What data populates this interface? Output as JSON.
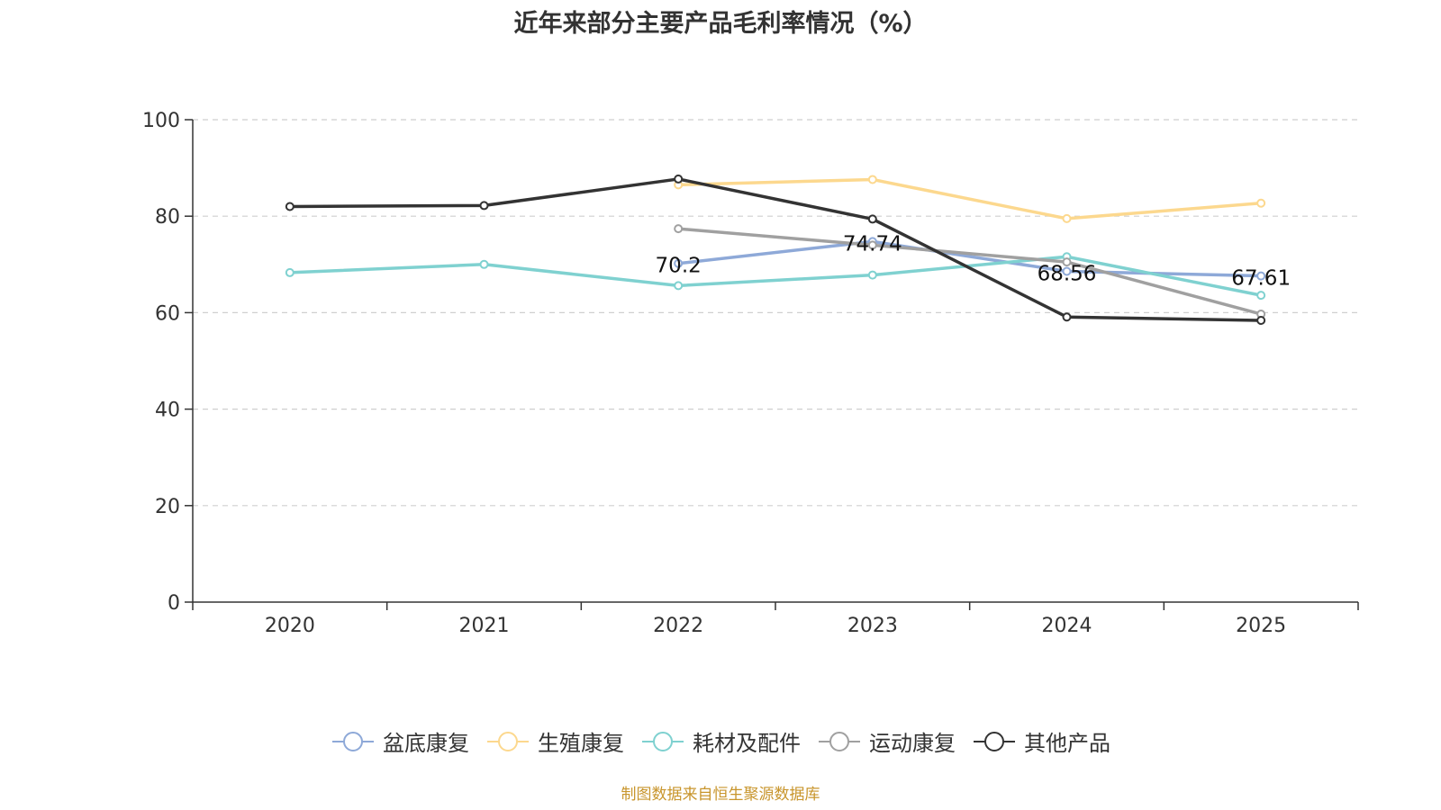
{
  "chart_data": {
    "type": "line",
    "title": "近年来部分主要产品毛利率情况（%）",
    "categories": [
      "2020",
      "2021",
      "2022",
      "2023",
      "2024",
      "2025"
    ],
    "ylim": [
      0,
      100
    ],
    "yticks": [
      0,
      20,
      40,
      60,
      80,
      100
    ],
    "grid": true,
    "legend_position": "bottom",
    "series": [
      {
        "name": "盆底康复",
        "color": "#8ea9d8",
        "values": [
          null,
          null,
          70.2,
          74.74,
          68.56,
          67.61
        ],
        "labels": [
          "",
          "",
          "70.2",
          "74.74",
          "68.56",
          "67.61"
        ]
      },
      {
        "name": "生殖康复",
        "color": "#fcd88e",
        "values": [
          null,
          null,
          86.5,
          87.6,
          79.5,
          82.7
        ],
        "labels": [
          "",
          "",
          "",
          "",
          "",
          ""
        ]
      },
      {
        "name": "耗材及配件",
        "color": "#7fd1d0",
        "values": [
          68.3,
          70.0,
          65.6,
          67.8,
          71.6,
          63.6
        ],
        "labels": [
          "",
          "",
          "",
          "",
          "",
          ""
        ]
      },
      {
        "name": "运动康复",
        "color": "#a0a0a0",
        "values": [
          null,
          null,
          77.4,
          74.0,
          70.5,
          59.7
        ],
        "labels": [
          "",
          "",
          "",
          "",
          "",
          ""
        ]
      },
      {
        "name": "其他产品",
        "color": "#333333",
        "values": [
          82.0,
          82.2,
          87.7,
          79.4,
          59.1,
          58.4
        ],
        "labels": [
          "",
          "",
          "",
          "",
          "",
          ""
        ]
      }
    ],
    "source": "制图数据来自恒生聚源数据库"
  }
}
